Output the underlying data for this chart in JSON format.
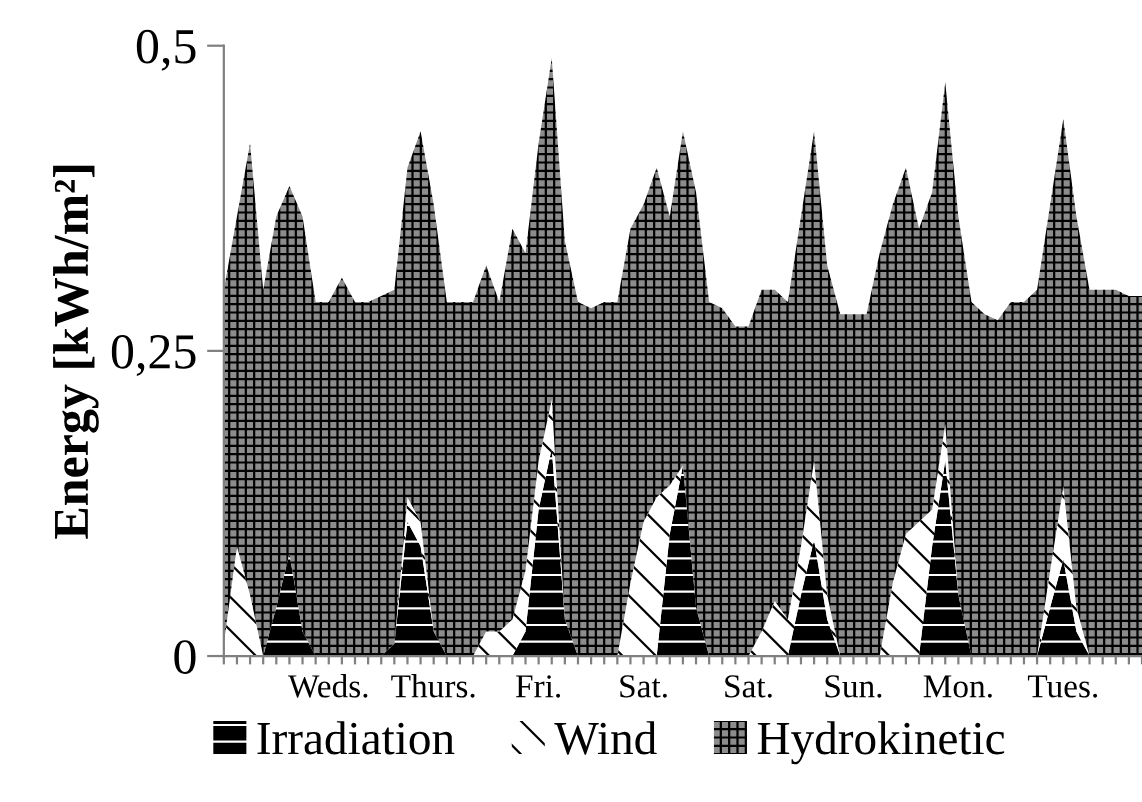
{
  "chart_data": {
    "type": "area",
    "stacked": true,
    "ylabel": "Energy [kWh/m²]",
    "categories": [
      null,
      null,
      null,
      null,
      null,
      null,
      null,
      null,
      "Weds.",
      null,
      null,
      null,
      null,
      null,
      null,
      null,
      "Thurs.",
      null,
      null,
      null,
      null,
      null,
      null,
      null,
      "Fri.",
      null,
      null,
      null,
      null,
      null,
      null,
      null,
      "Sat.",
      null,
      null,
      null,
      null,
      null,
      null,
      null,
      "Sat.",
      null,
      null,
      null,
      null,
      null,
      null,
      null,
      "Sun.",
      null,
      null,
      null,
      null,
      null,
      null,
      null,
      "Mon.",
      null,
      null,
      null,
      null,
      null,
      null,
      null,
      "Tues.",
      null,
      null,
      null,
      null,
      null,
      null
    ],
    "series": [
      {
        "name": "Irradiation",
        "color": "#000000",
        "values": [
          0,
          0,
          0,
          0,
          0.04,
          0.084,
          0.02,
          0,
          0,
          0,
          0,
          0,
          0,
          0.01,
          0.11,
          0.09,
          0.02,
          0,
          0,
          0,
          0,
          0,
          0,
          0.02,
          0.12,
          0.17,
          0.03,
          0,
          0,
          0,
          0,
          0,
          0,
          0,
          0.1,
          0.156,
          0.04,
          0,
          0,
          0,
          0,
          0,
          0,
          0,
          0.05,
          0.095,
          0.03,
          0,
          0,
          0,
          0,
          0,
          0,
          0,
          0.09,
          0.16,
          0.05,
          0,
          0,
          0,
          0,
          0,
          0,
          0.04,
          0.079,
          0.02,
          0,
          0,
          0,
          0,
          0
        ]
      },
      {
        "name": "Wind",
        "color": "#ffffff",
        "values": [
          0.01,
          0.09,
          0.05,
          0,
          0,
          0,
          0,
          0,
          0,
          0,
          0,
          0,
          0,
          0,
          0.02,
          0.02,
          0,
          0,
          0,
          0,
          0.02,
          0.02,
          0.03,
          0.05,
          0.04,
          0.04,
          0,
          0,
          0,
          0,
          0,
          0.06,
          0.11,
          0.13,
          0.04,
          0,
          0,
          0,
          0,
          0,
          0,
          0.02,
          0.045,
          0.03,
          0.04,
          0.065,
          0.02,
          0,
          0,
          0,
          0,
          0.06,
          0.1,
          0.11,
          0.03,
          0.03,
          0,
          0,
          0,
          0,
          0,
          0,
          0,
          0.03,
          0.06,
          0.02,
          0,
          0,
          0,
          0,
          0
        ]
      },
      {
        "name": "Hydrokinetic",
        "color": "#8c8c8c",
        "values": [
          0.29,
          0.27,
          0.37,
          0.3,
          0.32,
          0.301,
          0.34,
          0.29,
          0.29,
          0.31,
          0.29,
          0.29,
          0.295,
          0.29,
          0.27,
          0.32,
          0.35,
          0.29,
          0.29,
          0.29,
          0.3,
          0.27,
          0.32,
          0.26,
          0.26,
          0.28,
          0.31,
          0.29,
          0.285,
          0.29,
          0.29,
          0.29,
          0.26,
          0.27,
          0.22,
          0.274,
          0.34,
          0.29,
          0.285,
          0.27,
          0.27,
          0.28,
          0.255,
          0.26,
          0.27,
          0.27,
          0.27,
          0.28,
          0.28,
          0.28,
          0.33,
          0.31,
          0.3,
          0.24,
          0.26,
          0.28,
          0.31,
          0.29,
          0.28,
          0.275,
          0.29,
          0.29,
          0.3,
          0.3,
          0.301,
          0.32,
          0.3,
          0.3,
          0.3,
          0.295,
          0.295
        ]
      }
    ],
    "ylim": [
      0,
      0.5
    ],
    "yticks": [
      0,
      {
        "value": 0.25,
        "label": "0,25"
      },
      {
        "value": 0.5,
        "label": "0,5"
      }
    ],
    "grid": false,
    "legend": "bottom"
  }
}
